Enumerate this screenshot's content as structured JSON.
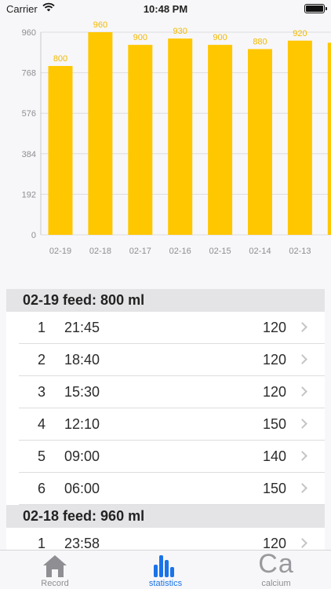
{
  "status_bar": {
    "carrier": "Carrier",
    "time": "10:48 PM"
  },
  "chart_data": {
    "type": "bar",
    "categories": [
      "02-19",
      "02-18",
      "02-17",
      "02-16",
      "02-15",
      "02-14",
      "02-13",
      "02-12"
    ],
    "values": [
      800,
      960,
      900,
      930,
      900,
      880,
      920,
      910
    ],
    "visible_labels": [
      "800",
      "960",
      "900",
      "930",
      "900",
      "880",
      "920",
      ""
    ],
    "visible_categories": [
      "02-19",
      "02-18",
      "02-17",
      "02-16",
      "02-15",
      "02-14",
      "02-13",
      "0"
    ],
    "y_ticks": [
      "0",
      "192",
      "384",
      "576",
      "768",
      "960"
    ],
    "ylim": [
      0,
      960
    ],
    "bar_color": "#ffc700",
    "label_color": "#f2b900",
    "grid": true
  },
  "sections": [
    {
      "title": "02-19 feed: 800 ml",
      "rows": [
        {
          "index": "1",
          "time": "21:45",
          "amount": "120"
        },
        {
          "index": "2",
          "time": "18:40",
          "amount": "120"
        },
        {
          "index": "3",
          "time": "15:30",
          "amount": "120"
        },
        {
          "index": "4",
          "time": "12:10",
          "amount": "150"
        },
        {
          "index": "5",
          "time": "09:00",
          "amount": "140"
        },
        {
          "index": "6",
          "time": "06:00",
          "amount": "150"
        }
      ]
    },
    {
      "title": "02-18 feed: 960 ml",
      "rows": [
        {
          "index": "1",
          "time": "23:58",
          "amount": "120"
        }
      ]
    }
  ],
  "tabs": [
    {
      "label": "Record",
      "icon": "house-icon",
      "active": false
    },
    {
      "label": "statistics",
      "icon": "bar-chart-icon",
      "active": true
    },
    {
      "label": "calcium",
      "icon": "calcium-icon",
      "icon_text": "Ca",
      "active": false
    }
  ],
  "colors": {
    "accent": "#1a73e8",
    "inactive": "#8e8e93"
  }
}
